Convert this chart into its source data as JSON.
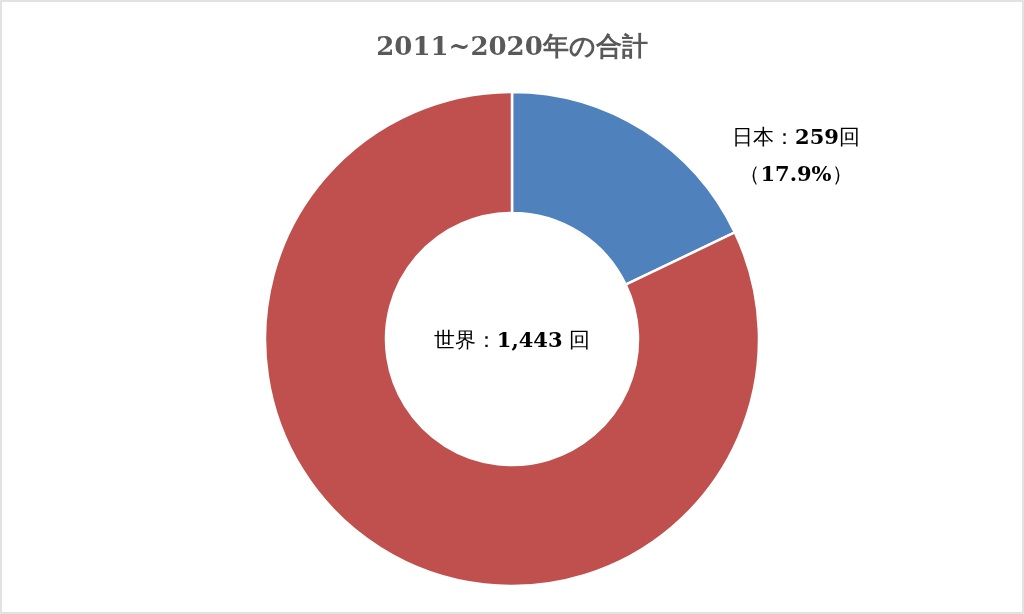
{
  "chart_data": {
    "type": "donut",
    "title": "2011~2020年の合計",
    "categories": [
      "日本",
      null
    ],
    "values": [
      17.9,
      82.1
    ],
    "colors": [
      "#4f81bd",
      "#c0504d"
    ],
    "value_labels": [
      "：259回（17.9%）",
      null
    ],
    "annotations": [
      "世界：1,443 回"
    ],
    "legend": false
  }
}
